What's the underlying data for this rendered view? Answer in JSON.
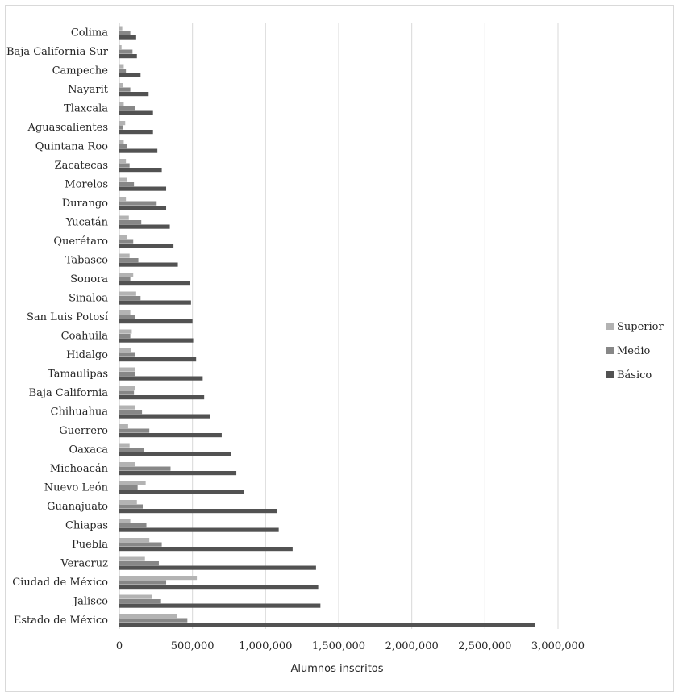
{
  "chart_data": {
    "type": "bar",
    "orientation": "horizontal",
    "title": "",
    "xlabel": "Alumnos inscritos",
    "ylabel": "",
    "xlim": [
      0,
      3000000
    ],
    "x_ticks": [
      0,
      500000,
      1000000,
      1500000,
      2000000,
      2500000,
      3000000
    ],
    "x_tick_labels": [
      "0",
      "500,000",
      "1,000,000",
      "1,500,000",
      "2,000,000",
      "2,500,000",
      "3,000,000"
    ],
    "grid": true,
    "legend_position": "right",
    "categories": [
      "Colima",
      "Baja California Sur",
      "Campeche",
      "Nayarit",
      "Tlaxcala",
      "Aguascalientes",
      "Quintana Roo",
      "Zacatecas",
      "Morelos",
      "Durango",
      "Yucatán",
      "Querétaro",
      "Tabasco",
      "Sonora",
      "Sinaloa",
      "San Luis Potosí",
      "Coahuila",
      "Hidalgo",
      "Tamaulipas",
      "Baja California",
      "Chihuahua",
      "Guerrero",
      "Oaxaca",
      "Michoacán",
      "Nuevo León",
      "Guanajuato",
      "Chiapas",
      "Puebla",
      "Veracruz",
      "Ciudad de México",
      "Jalisco",
      "Estado de México"
    ],
    "series": [
      {
        "name": "Superior",
        "color": "#b3b3b3",
        "values": [
          20000,
          15000,
          30000,
          25000,
          30000,
          40000,
          30000,
          45000,
          55000,
          45000,
          65000,
          55000,
          70000,
          95000,
          115000,
          75000,
          85000,
          80000,
          105000,
          110000,
          110000,
          60000,
          70000,
          105000,
          180000,
          120000,
          75000,
          205000,
          175000,
          530000,
          225000,
          395000
        ]
      },
      {
        "name": "Medio",
        "color": "#878787",
        "values": [
          75000,
          90000,
          45000,
          75000,
          105000,
          25000,
          55000,
          70000,
          100000,
          255000,
          150000,
          95000,
          130000,
          75000,
          145000,
          105000,
          75000,
          110000,
          105000,
          100000,
          155000,
          205000,
          170000,
          350000,
          125000,
          160000,
          185000,
          290000,
          270000,
          320000,
          285000,
          465000
        ]
      },
      {
        "name": "Básico",
        "color": "#525252",
        "values": [
          115000,
          120000,
          145000,
          200000,
          230000,
          230000,
          260000,
          290000,
          320000,
          320000,
          345000,
          370000,
          400000,
          485000,
          490000,
          500000,
          505000,
          525000,
          570000,
          580000,
          620000,
          700000,
          765000,
          800000,
          850000,
          1080000,
          1090000,
          1185000,
          1345000,
          1360000,
          1375000,
          2845000
        ]
      }
    ]
  }
}
